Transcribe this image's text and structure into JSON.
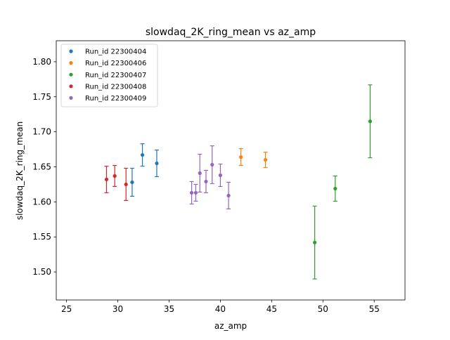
{
  "chart_data": {
    "type": "scatter",
    "title": "slowdaq_2K_ring_mean vs az_amp",
    "xlabel": "az_amp",
    "ylabel": "slowdaq_2K_ring_mean",
    "xlim": [
      24,
      58
    ],
    "ylim": [
      1.46,
      1.83
    ],
    "xticks": [
      25,
      30,
      35,
      40,
      45,
      50,
      55
    ],
    "yticks": [
      1.5,
      1.55,
      1.6,
      1.65,
      1.7,
      1.75,
      1.8
    ],
    "xtick_labels": [
      "25",
      "30",
      "35",
      "40",
      "45",
      "50",
      "55"
    ],
    "ytick_labels": [
      "1.50",
      "1.55",
      "1.60",
      "1.65",
      "1.70",
      "1.75",
      "1.80"
    ],
    "grid": false,
    "legend_position": "top-left",
    "error_bars": true,
    "series": [
      {
        "name": "Run_id 22300404",
        "color": "#1f77b4",
        "points": [
          {
            "x": 31.4,
            "y": 1.628,
            "err": 0.02
          },
          {
            "x": 32.4,
            "y": 1.667,
            "err": 0.016
          },
          {
            "x": 33.8,
            "y": 1.655,
            "err": 0.019
          }
        ]
      },
      {
        "name": "Run_id 22300406",
        "color": "#ff7f0e",
        "points": [
          {
            "x": 42.0,
            "y": 1.664,
            "err": 0.012
          },
          {
            "x": 44.4,
            "y": 1.66,
            "err": 0.011
          }
        ]
      },
      {
        "name": "Run_id 22300407",
        "color": "#2ca02c",
        "points": [
          {
            "x": 49.2,
            "y": 1.542,
            "err": 0.052
          },
          {
            "x": 51.2,
            "y": 1.619,
            "err": 0.018
          },
          {
            "x": 54.6,
            "y": 1.715,
            "err": 0.052
          }
        ]
      },
      {
        "name": "Run_id 22300408",
        "color": "#d62728",
        "points": [
          {
            "x": 28.9,
            "y": 1.632,
            "err": 0.019
          },
          {
            "x": 29.7,
            "y": 1.637,
            "err": 0.015
          },
          {
            "x": 30.8,
            "y": 1.625,
            "err": 0.023
          }
        ]
      },
      {
        "name": "Run_id 22300409",
        "color": "#9467bd",
        "points": [
          {
            "x": 37.2,
            "y": 1.613,
            "err": 0.016
          },
          {
            "x": 37.6,
            "y": 1.613,
            "err": 0.012
          },
          {
            "x": 38.0,
            "y": 1.641,
            "err": 0.027
          },
          {
            "x": 38.6,
            "y": 1.629,
            "err": 0.016
          },
          {
            "x": 39.2,
            "y": 1.653,
            "err": 0.027
          },
          {
            "x": 40.0,
            "y": 1.638,
            "err": 0.016
          },
          {
            "x": 40.8,
            "y": 1.609,
            "err": 0.019
          }
        ]
      }
    ]
  }
}
